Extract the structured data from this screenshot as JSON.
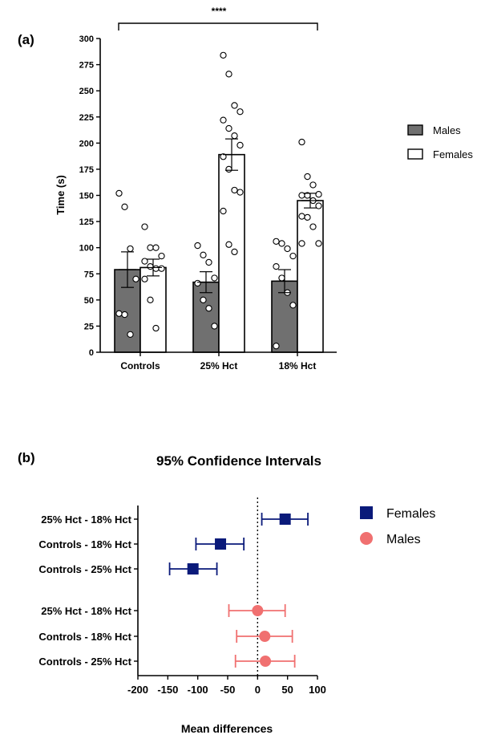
{
  "colors": {
    "male_bar": "#707070",
    "female_bar": "#ffffff",
    "axis": "#000000",
    "females_ci": "#0a1a7a",
    "males_ci": "#f07070"
  },
  "chart_data": [
    {
      "type": "bar",
      "panel_label": "(a)",
      "ylabel": "Time (s)",
      "ylim": [
        0,
        300
      ],
      "yticks": [
        0,
        25,
        50,
        75,
        100,
        125,
        150,
        175,
        200,
        225,
        250,
        275,
        300
      ],
      "categories": [
        "Controls",
        "25% Hct",
        "18% Hct"
      ],
      "significance": "****",
      "legend": {
        "position": "right",
        "entries": [
          "Males",
          "Females"
        ]
      },
      "series": [
        {
          "name": "Males",
          "values": [
            79,
            67,
            68
          ],
          "sem": [
            17,
            10,
            11
          ],
          "points": [
            [
              152,
              139,
              99,
              70,
              37,
              36,
              17
            ],
            [
              102,
              93,
              86,
              71,
              66,
              50,
              42,
              25
            ],
            [
              106,
              104,
              99,
              92,
              82,
              71,
              57,
              45,
              6
            ]
          ]
        },
        {
          "name": "Females",
          "values": [
            81,
            189,
            145
          ],
          "sem": [
            8,
            15,
            7
          ],
          "points": [
            [
              120,
              100,
              100,
              92,
              87,
              82,
              80,
              80,
              70,
              50,
              23
            ],
            [
              284,
              266,
              236,
              230,
              222,
              214,
              207,
              198,
              187,
              175,
              155,
              153,
              135,
              103,
              96
            ],
            [
              201,
              168,
              160,
              151,
              150,
              150,
              145,
              140,
              130,
              129,
              120,
              104,
              104
            ]
          ]
        }
      ]
    },
    {
      "type": "scatter",
      "panel_label": "(b)",
      "title": "95% Confidence Intervals",
      "xlabel": "Mean differences",
      "xlim": [
        -200,
        100
      ],
      "xticks": [
        -200,
        -150,
        -100,
        -50,
        0,
        50,
        100
      ],
      "reference_line": 0,
      "legend": {
        "position": "top-right",
        "entries": [
          "Females",
          "Males"
        ]
      },
      "series": [
        {
          "name": "Females",
          "marker": "square",
          "rows": [
            {
              "label": "25% Hct - 18% Hct",
              "mean": 46,
              "low": 7,
              "high": 84
            },
            {
              "label": "Controls - 18% Hct",
              "mean": -62,
              "low": -103,
              "high": -23
            },
            {
              "label": "Controls - 25% Hct",
              "mean": -108,
              "low": -147,
              "high": -68
            }
          ]
        },
        {
          "name": "Males",
          "marker": "circle",
          "rows": [
            {
              "label": "25% Hct - 18% Hct",
              "mean": 0,
              "low": -48,
              "high": 46
            },
            {
              "label": "Controls - 18% Hct",
              "mean": 12,
              "low": -35,
              "high": 58
            },
            {
              "label": "Controls - 25% Hct",
              "mean": 13,
              "low": -37,
              "high": 62
            }
          ]
        }
      ]
    }
  ]
}
